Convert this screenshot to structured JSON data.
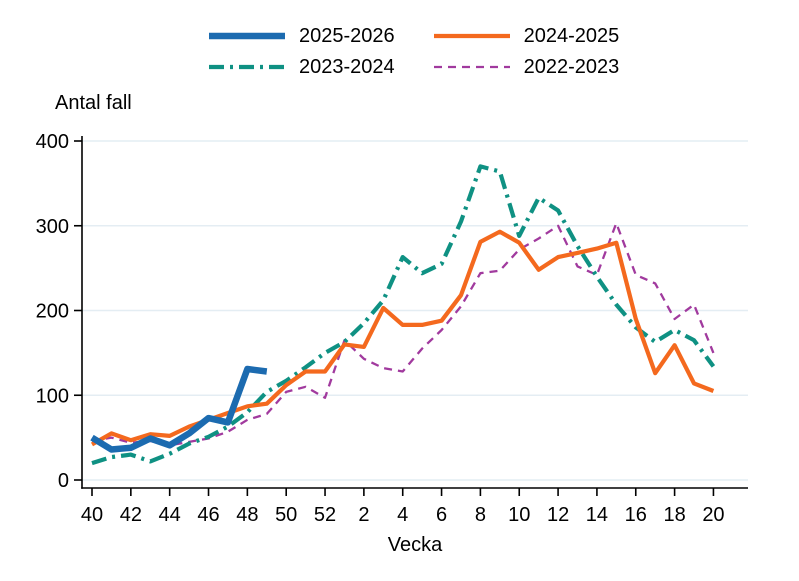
{
  "axis_titles": {
    "y": "Antal fall",
    "x": "Vecka"
  },
  "colors": {
    "background": "#ffffff",
    "gridline": "#e4edf3",
    "axis": "#000000",
    "text": "#000000"
  },
  "chart_data": {
    "type": "line",
    "title": "",
    "xlabel": "Vecka",
    "ylabel": "Antal fall",
    "ylim": [
      0,
      400
    ],
    "y_ticks": [
      0,
      100,
      200,
      300,
      400
    ],
    "x_tick_labels": [
      "40",
      "42",
      "44",
      "46",
      "48",
      "50",
      "52",
      "2",
      "4",
      "6",
      "8",
      "10",
      "12",
      "14",
      "16",
      "18",
      "20"
    ],
    "grid": true,
    "legend_position": "top-center",
    "categories": [
      40,
      41,
      42,
      43,
      44,
      45,
      46,
      47,
      48,
      49,
      50,
      51,
      52,
      1,
      2,
      3,
      4,
      5,
      6,
      7,
      8,
      9,
      10,
      11,
      12,
      13,
      14,
      15,
      16,
      17,
      18,
      19,
      20
    ],
    "series": [
      {
        "name": "2025-2026",
        "color": "#1c6bb0",
        "line_style": "solid-thick",
        "values": [
          50,
          36,
          38,
          49,
          41,
          55,
          73,
          68,
          131,
          128,
          null,
          null,
          null,
          null,
          null,
          null,
          null,
          null,
          null,
          null,
          null,
          null,
          null,
          null,
          null,
          null,
          null,
          null,
          null,
          null,
          null,
          null,
          null
        ]
      },
      {
        "name": "2024-2025",
        "color": "#f4691e",
        "line_style": "solid",
        "values": [
          42,
          55,
          47,
          54,
          52,
          63,
          71,
          79,
          87,
          90,
          112,
          128,
          128,
          160,
          157,
          203,
          183,
          183,
          188,
          218,
          281,
          293,
          280,
          248,
          263,
          268,
          273,
          280,
          190,
          126,
          159,
          114,
          105
        ]
      },
      {
        "name": "2023-2024",
        "color": "#0f9183",
        "line_style": "dash-dot",
        "values": [
          20,
          27,
          30,
          22,
          31,
          43,
          51,
          63,
          80,
          104,
          117,
          133,
          150,
          163,
          185,
          212,
          263,
          244,
          255,
          305,
          370,
          364,
          288,
          333,
          318,
          276,
          240,
          207,
          180,
          163,
          177,
          165,
          134
        ]
      },
      {
        "name": "2022-2023",
        "color": "#a13a9e",
        "line_style": "dashed",
        "values": [
          46,
          50,
          44,
          46,
          41,
          45,
          49,
          57,
          71,
          78,
          104,
          110,
          97,
          165,
          143,
          132,
          128,
          155,
          177,
          205,
          244,
          247,
          272,
          285,
          300,
          252,
          242,
          303,
          242,
          232,
          190,
          207,
          150
        ]
      }
    ]
  }
}
